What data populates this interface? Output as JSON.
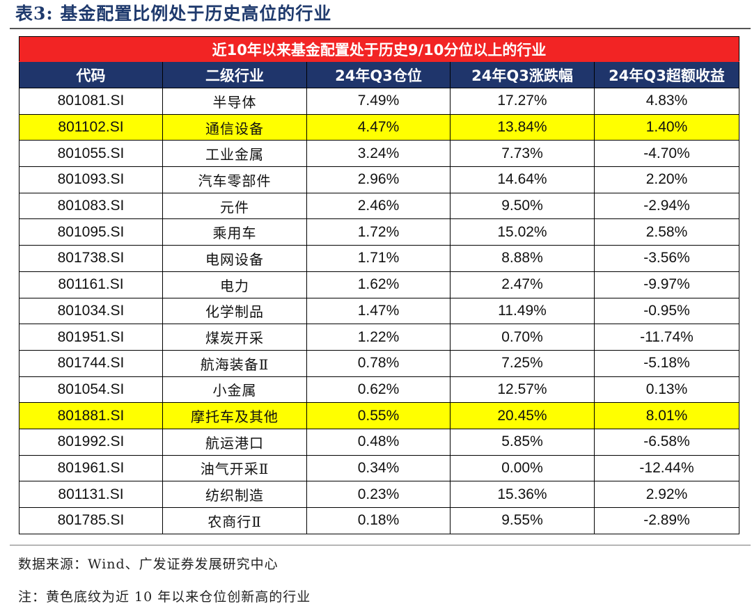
{
  "title": "表3: 基金配置比例处于历史高位的行业",
  "banner": "近10年以来基金配置处于历史9/10分位以上的行业",
  "columns": [
    "代码",
    "二级行业",
    "24年Q3仓位",
    "24年Q3涨跌幅",
    "24年Q3超额收益"
  ],
  "rows": [
    {
      "code": "801081.SI",
      "industry": "半导体",
      "position": "7.49%",
      "change": "17.27%",
      "excess": "4.83%",
      "highlight": false
    },
    {
      "code": "801102.SI",
      "industry": "通信设备",
      "position": "4.47%",
      "change": "13.84%",
      "excess": "1.40%",
      "highlight": true
    },
    {
      "code": "801055.SI",
      "industry": "工业金属",
      "position": "3.24%",
      "change": "7.73%",
      "excess": "-4.70%",
      "highlight": false
    },
    {
      "code": "801093.SI",
      "industry": "汽车零部件",
      "position": "2.96%",
      "change": "14.64%",
      "excess": "2.20%",
      "highlight": false
    },
    {
      "code": "801083.SI",
      "industry": "元件",
      "position": "2.46%",
      "change": "9.50%",
      "excess": "-2.94%",
      "highlight": false
    },
    {
      "code": "801095.SI",
      "industry": "乘用车",
      "position": "1.72%",
      "change": "15.02%",
      "excess": "2.58%",
      "highlight": false
    },
    {
      "code": "801738.SI",
      "industry": "电网设备",
      "position": "1.71%",
      "change": "8.88%",
      "excess": "-3.56%",
      "highlight": false
    },
    {
      "code": "801161.SI",
      "industry": "电力",
      "position": "1.62%",
      "change": "2.47%",
      "excess": "-9.97%",
      "highlight": false
    },
    {
      "code": "801034.SI",
      "industry": "化学制品",
      "position": "1.47%",
      "change": "11.49%",
      "excess": "-0.95%",
      "highlight": false
    },
    {
      "code": "801951.SI",
      "industry": "煤炭开采",
      "position": "1.22%",
      "change": "0.70%",
      "excess": "-11.74%",
      "highlight": false
    },
    {
      "code": "801744.SI",
      "industry": "航海装备Ⅱ",
      "position": "0.78%",
      "change": "7.25%",
      "excess": "-5.18%",
      "highlight": false
    },
    {
      "code": "801054.SI",
      "industry": "小金属",
      "position": "0.62%",
      "change": "12.57%",
      "excess": "0.13%",
      "highlight": false
    },
    {
      "code": "801881.SI",
      "industry": "摩托车及其他",
      "position": "0.55%",
      "change": "20.45%",
      "excess": "8.01%",
      "highlight": true
    },
    {
      "code": "801992.SI",
      "industry": "航运港口",
      "position": "0.48%",
      "change": "5.85%",
      "excess": "-6.58%",
      "highlight": false
    },
    {
      "code": "801961.SI",
      "industry": "油气开采Ⅱ",
      "position": "0.34%",
      "change": "0.00%",
      "excess": "-12.44%",
      "highlight": false
    },
    {
      "code": "801131.SI",
      "industry": "纺织制造",
      "position": "0.23%",
      "change": "15.36%",
      "excess": "2.92%",
      "highlight": false
    },
    {
      "code": "801785.SI",
      "industry": "农商行Ⅱ",
      "position": "0.18%",
      "change": "9.55%",
      "excess": "-2.89%",
      "highlight": false
    }
  ],
  "source": "数据来源：Wind、广发证券发展研究中心",
  "note": "注：黄色底纹为近 10 年以来仓位创新高的行业",
  "colors": {
    "banner_bg": "#f22424",
    "header_bg": "#1f356b",
    "highlight_bg": "#ffff00",
    "title_text": "#1f3a6d"
  }
}
